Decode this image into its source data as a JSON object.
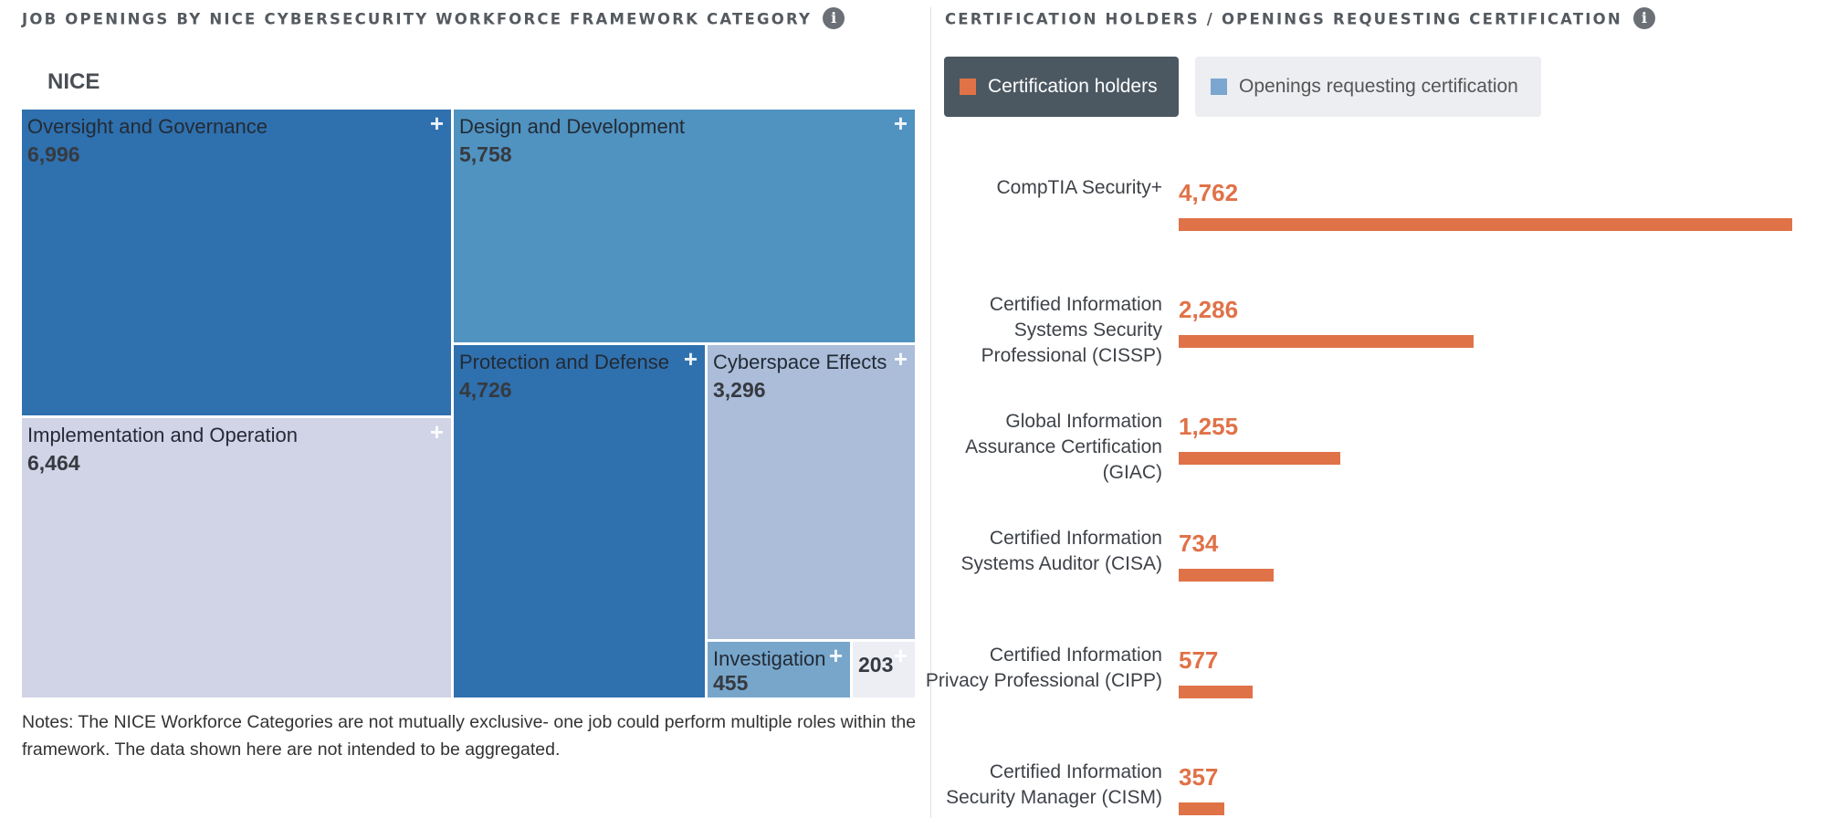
{
  "left_panel": {
    "title": "JOB OPENINGS BY NICE CYBERSECURITY WORKFORCE FRAMEWORK CATEGORY",
    "info_icon": "info-icon",
    "root_label": "NICE",
    "notes": "Notes: The NICE Workforce Categories are not mutually exclusive- one job could perform multiple roles within the framework. The data shown here are not intended to be aggregated."
  },
  "right_panel": {
    "title": "CERTIFICATION HOLDERS / OPENINGS REQUESTING CERTIFICATION",
    "info_icon": "info-icon",
    "legend": [
      {
        "label": "Certification holders",
        "color": "#e07248",
        "active": true
      },
      {
        "label": "Openings requesting certification",
        "color": "#7ba6cf",
        "active": false
      }
    ]
  },
  "chart_data": [
    {
      "type": "treemap",
      "title": "JOB OPENINGS BY NICE CYBERSECURITY WORKFORCE FRAMEWORK CATEGORY",
      "root": "NICE",
      "items": [
        {
          "name": "Oversight and Governance",
          "value": 6996,
          "value_label": "6,996",
          "color": "#2f70ae"
        },
        {
          "name": "Implementation and Operation",
          "value": 6464,
          "value_label": "6,464",
          "color": "#d1d3e6"
        },
        {
          "name": "Design and Development",
          "value": 5758,
          "value_label": "5,758",
          "color": "#5092c0"
        },
        {
          "name": "Protection and Defense",
          "value": 4726,
          "value_label": "4,726",
          "color": "#2f70ae"
        },
        {
          "name": "Cyberspace Effects",
          "value": 3296,
          "value_label": "3,296",
          "color": "#abbdd9"
        },
        {
          "name": "Investigation",
          "value": 455,
          "value_label": "455",
          "color": "#78a6cb"
        },
        {
          "name": "",
          "value": 203,
          "value_label": "203",
          "color": "#eceef4"
        }
      ]
    },
    {
      "type": "bar",
      "orientation": "horizontal",
      "title": "CERTIFICATION HOLDERS / OPENINGS REQUESTING CERTIFICATION",
      "active_series": "Certification holders",
      "color": "#e07248",
      "xlim": [
        0,
        4762
      ],
      "categories": [
        "CompTIA Security+",
        "Certified Information Systems Security Professional (CISSP)",
        "Global Information Assurance Certification (GIAC)",
        "Certified Information Systems Auditor (CISA)",
        "Certified Information Privacy Professional (CIPP)",
        "Certified Information Security Manager (CISM)"
      ],
      "values": [
        4762,
        2286,
        1255,
        734,
        577,
        357
      ],
      "value_labels": [
        "4,762",
        "2,286",
        "1,255",
        "734",
        "577",
        "357"
      ]
    }
  ]
}
